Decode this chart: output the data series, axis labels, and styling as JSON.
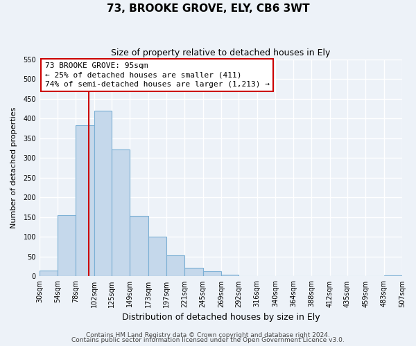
{
  "title": "73, BROOKE GROVE, ELY, CB6 3WT",
  "subtitle": "Size of property relative to detached houses in Ely",
  "xlabel": "Distribution of detached houses by size in Ely",
  "ylabel": "Number of detached properties",
  "bar_edges": [
    30,
    54,
    78,
    102,
    125,
    149,
    173,
    197,
    221,
    245,
    269,
    292,
    316,
    340,
    364,
    388,
    412,
    435,
    459,
    483,
    507
  ],
  "bar_heights": [
    15,
    155,
    383,
    420,
    322,
    153,
    100,
    54,
    22,
    13,
    4,
    1,
    1,
    0,
    0,
    1,
    0,
    0,
    0,
    2
  ],
  "bar_color": "#c5d8eb",
  "bar_edge_color": "#7bafd4",
  "property_line_x": 95,
  "property_line_color": "#cc0000",
  "annotation_line1": "73 BROOKE GROVE: 95sqm",
  "annotation_line2": "← 25% of detached houses are smaller (411)",
  "annotation_line3": "74% of semi-detached houses are larger (1,213) →",
  "annotation_box_color": "#ffffff",
  "annotation_box_edge_color": "#cc0000",
  "ylim": [
    0,
    550
  ],
  "yticks": [
    0,
    50,
    100,
    150,
    200,
    250,
    300,
    350,
    400,
    450,
    500,
    550
  ],
  "footer_line1": "Contains HM Land Registry data © Crown copyright and database right 2024.",
  "footer_line2": "Contains public sector information licensed under the Open Government Licence v3.0.",
  "bg_color": "#edf2f8",
  "plot_bg_color": "#edf2f8",
  "grid_color": "#ffffff",
  "title_fontsize": 11,
  "subtitle_fontsize": 9,
  "xlabel_fontsize": 9,
  "ylabel_fontsize": 8,
  "tick_fontsize": 7,
  "annotation_fontsize": 8,
  "footer_fontsize": 6.5
}
